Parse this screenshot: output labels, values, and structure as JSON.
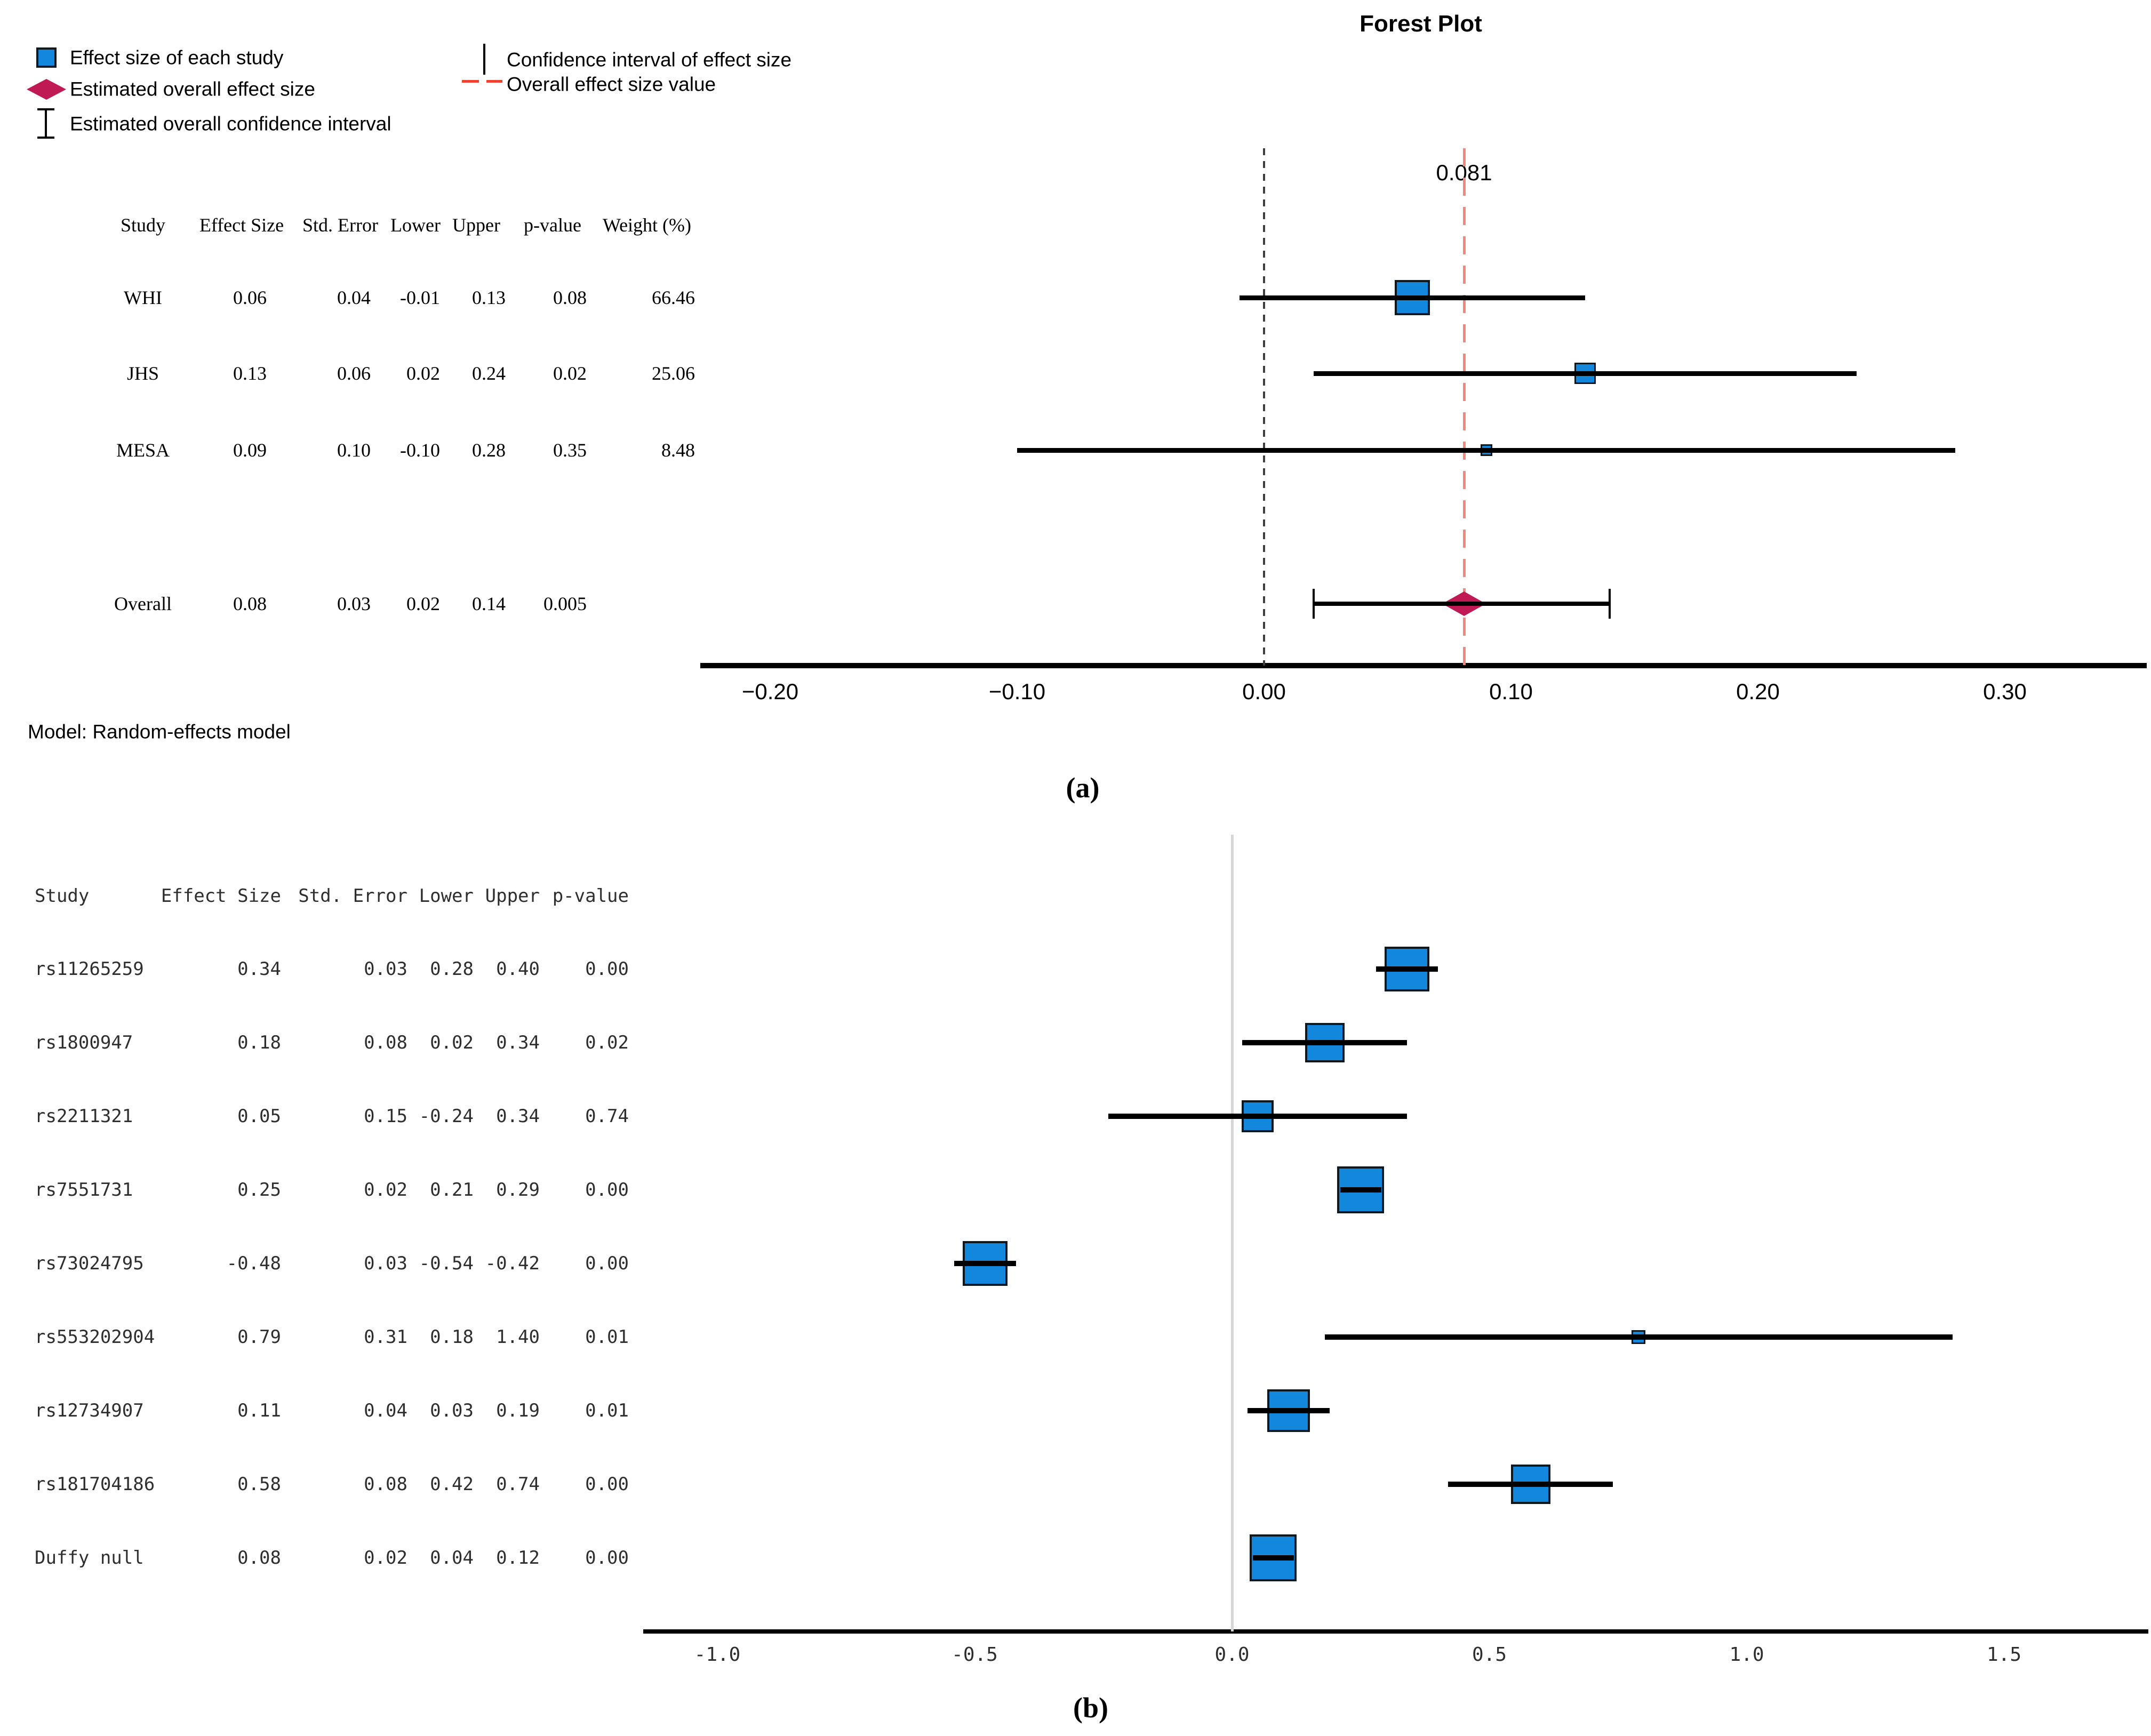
{
  "figure": {
    "title": "Forest Plot"
  },
  "legend": {
    "items": [
      {
        "icon": "study-square-icon",
        "label": "Effect size of each study"
      },
      {
        "icon": "overall-diamond-icon",
        "label": "Estimated overall effect size"
      },
      {
        "icon": "overall-ci-icon",
        "label": "Estimated overall confidence interval"
      },
      {
        "icon": "ci-line-icon",
        "label": "Confidence interval of effect size"
      },
      {
        "icon": "overall-value-line-icon",
        "label": "Overall effect size value"
      }
    ]
  },
  "panel_a": {
    "panel_label": "(a)",
    "overall_value_label": "0.081",
    "model_note": "Model: Random-effects model",
    "table": {
      "headers": [
        "Study",
        "Effect Size",
        "Std. Error",
        "Lower",
        "Upper",
        "p-value",
        "Weight (%)"
      ],
      "rows": [
        [
          "WHI",
          "0.06",
          "0.04",
          "-0.01",
          "0.13",
          "0.08",
          "66.46"
        ],
        [
          "JHS",
          "0.13",
          "0.06",
          "0.02",
          "0.24",
          "0.02",
          "25.06"
        ],
        [
          "MESA",
          "0.09",
          "0.10",
          "-0.10",
          "0.28",
          "0.35",
          "8.48"
        ],
        [
          "Overall",
          "0.08",
          "0.03",
          "0.02",
          "0.14",
          "0.005",
          ""
        ]
      ]
    },
    "x_tick_labels": [
      "−0.20",
      "−0.10",
      "0.00",
      "0.10",
      "0.20",
      "0.30"
    ]
  },
  "panel_b": {
    "panel_label": "(b)",
    "table": {
      "headers": [
        "Study",
        "Effect Size",
        "Std. Error",
        "Lower",
        "Upper",
        "p-value"
      ],
      "rows": [
        [
          "rs11265259",
          "0.34",
          "0.03",
          "0.28",
          "0.40",
          "0.00"
        ],
        [
          "rs1800947",
          "0.18",
          "0.08",
          "0.02",
          "0.34",
          "0.02"
        ],
        [
          "rs2211321",
          "0.05",
          "0.15",
          "-0.24",
          "0.34",
          "0.74"
        ],
        [
          "rs7551731",
          "0.25",
          "0.02",
          "0.21",
          "0.29",
          "0.00"
        ],
        [
          "rs73024795",
          "-0.48",
          "0.03",
          "-0.54",
          "-0.42",
          "0.00"
        ],
        [
          "rs553202904",
          "0.79",
          "0.31",
          "0.18",
          "1.40",
          "0.01"
        ],
        [
          "rs12734907",
          "0.11",
          "0.04",
          "0.03",
          "0.19",
          "0.01"
        ],
        [
          "rs181704186",
          "0.58",
          "0.08",
          "0.42",
          "0.74",
          "0.00"
        ],
        [
          "Duffy null",
          "0.08",
          "0.02",
          "0.04",
          "0.12",
          "0.00"
        ]
      ]
    },
    "x_tick_labels": [
      "-1.0",
      "-0.5",
      "0.0",
      "0.5",
      "1.0",
      "1.5"
    ]
  },
  "chart_data": [
    {
      "type": "forest",
      "panel": "a",
      "title": "Forest Plot",
      "xlim": [
        -0.23,
        0.36
      ],
      "x_ticks": [
        -0.2,
        -0.1,
        0,
        0.1,
        0.2,
        0.3
      ],
      "zero_line": 0,
      "overall_line": 0.081,
      "model": "Random-effects model",
      "studies": [
        {
          "study": "WHI",
          "effect": 0.06,
          "std_error": 0.04,
          "lower": -0.01,
          "upper": 0.13,
          "p_value": 0.08,
          "weight_pct": 66.46,
          "marker_px": 66
        },
        {
          "study": "JHS",
          "effect": 0.13,
          "std_error": 0.06,
          "lower": 0.02,
          "upper": 0.24,
          "p_value": 0.02,
          "weight_pct": 25.06,
          "marker_px": 40
        },
        {
          "study": "MESA",
          "effect": 0.09,
          "std_error": 0.1,
          "lower": -0.1,
          "upper": 0.28,
          "p_value": 0.35,
          "weight_pct": 8.48,
          "marker_px": 22
        }
      ],
      "overall": {
        "effect": 0.08,
        "std_error": 0.03,
        "lower": 0.02,
        "upper": 0.14,
        "p_value": 0.005
      }
    },
    {
      "type": "forest",
      "panel": "b",
      "xlim": [
        -1.15,
        1.79
      ],
      "x_ticks": [
        -1.0,
        -0.5,
        0.0,
        0.5,
        1.0,
        1.5
      ],
      "zero_line": 0,
      "studies": [
        {
          "study": "rs11265259",
          "effect": 0.34,
          "std_error": 0.03,
          "lower": 0.28,
          "upper": 0.4,
          "p_value": 0.0,
          "marker_px": 84
        },
        {
          "study": "rs1800947",
          "effect": 0.18,
          "std_error": 0.08,
          "lower": 0.02,
          "upper": 0.34,
          "p_value": 0.02,
          "marker_px": 74
        },
        {
          "study": "rs2211321",
          "effect": 0.05,
          "std_error": 0.15,
          "lower": -0.24,
          "upper": 0.34,
          "p_value": 0.74,
          "marker_px": 60
        },
        {
          "study": "rs7551731",
          "effect": 0.25,
          "std_error": 0.02,
          "lower": 0.21,
          "upper": 0.29,
          "p_value": 0.0,
          "marker_px": 88
        },
        {
          "study": "rs73024795",
          "effect": -0.48,
          "std_error": 0.03,
          "lower": -0.54,
          "upper": -0.42,
          "p_value": 0.0,
          "marker_px": 84
        },
        {
          "study": "rs553202904",
          "effect": 0.79,
          "std_error": 0.31,
          "lower": 0.18,
          "upper": 1.4,
          "p_value": 0.01,
          "marker_px": 26
        },
        {
          "study": "rs12734907",
          "effect": 0.11,
          "std_error": 0.04,
          "lower": 0.03,
          "upper": 0.19,
          "p_value": 0.01,
          "marker_px": 80
        },
        {
          "study": "rs181704186",
          "effect": 0.58,
          "std_error": 0.08,
          "lower": 0.42,
          "upper": 0.74,
          "p_value": 0.0,
          "marker_px": 74
        },
        {
          "study": "Duffy null",
          "effect": 0.08,
          "std_error": 0.02,
          "lower": 0.04,
          "upper": 0.12,
          "p_value": 0.0,
          "marker_px": 88
        }
      ]
    }
  ]
}
